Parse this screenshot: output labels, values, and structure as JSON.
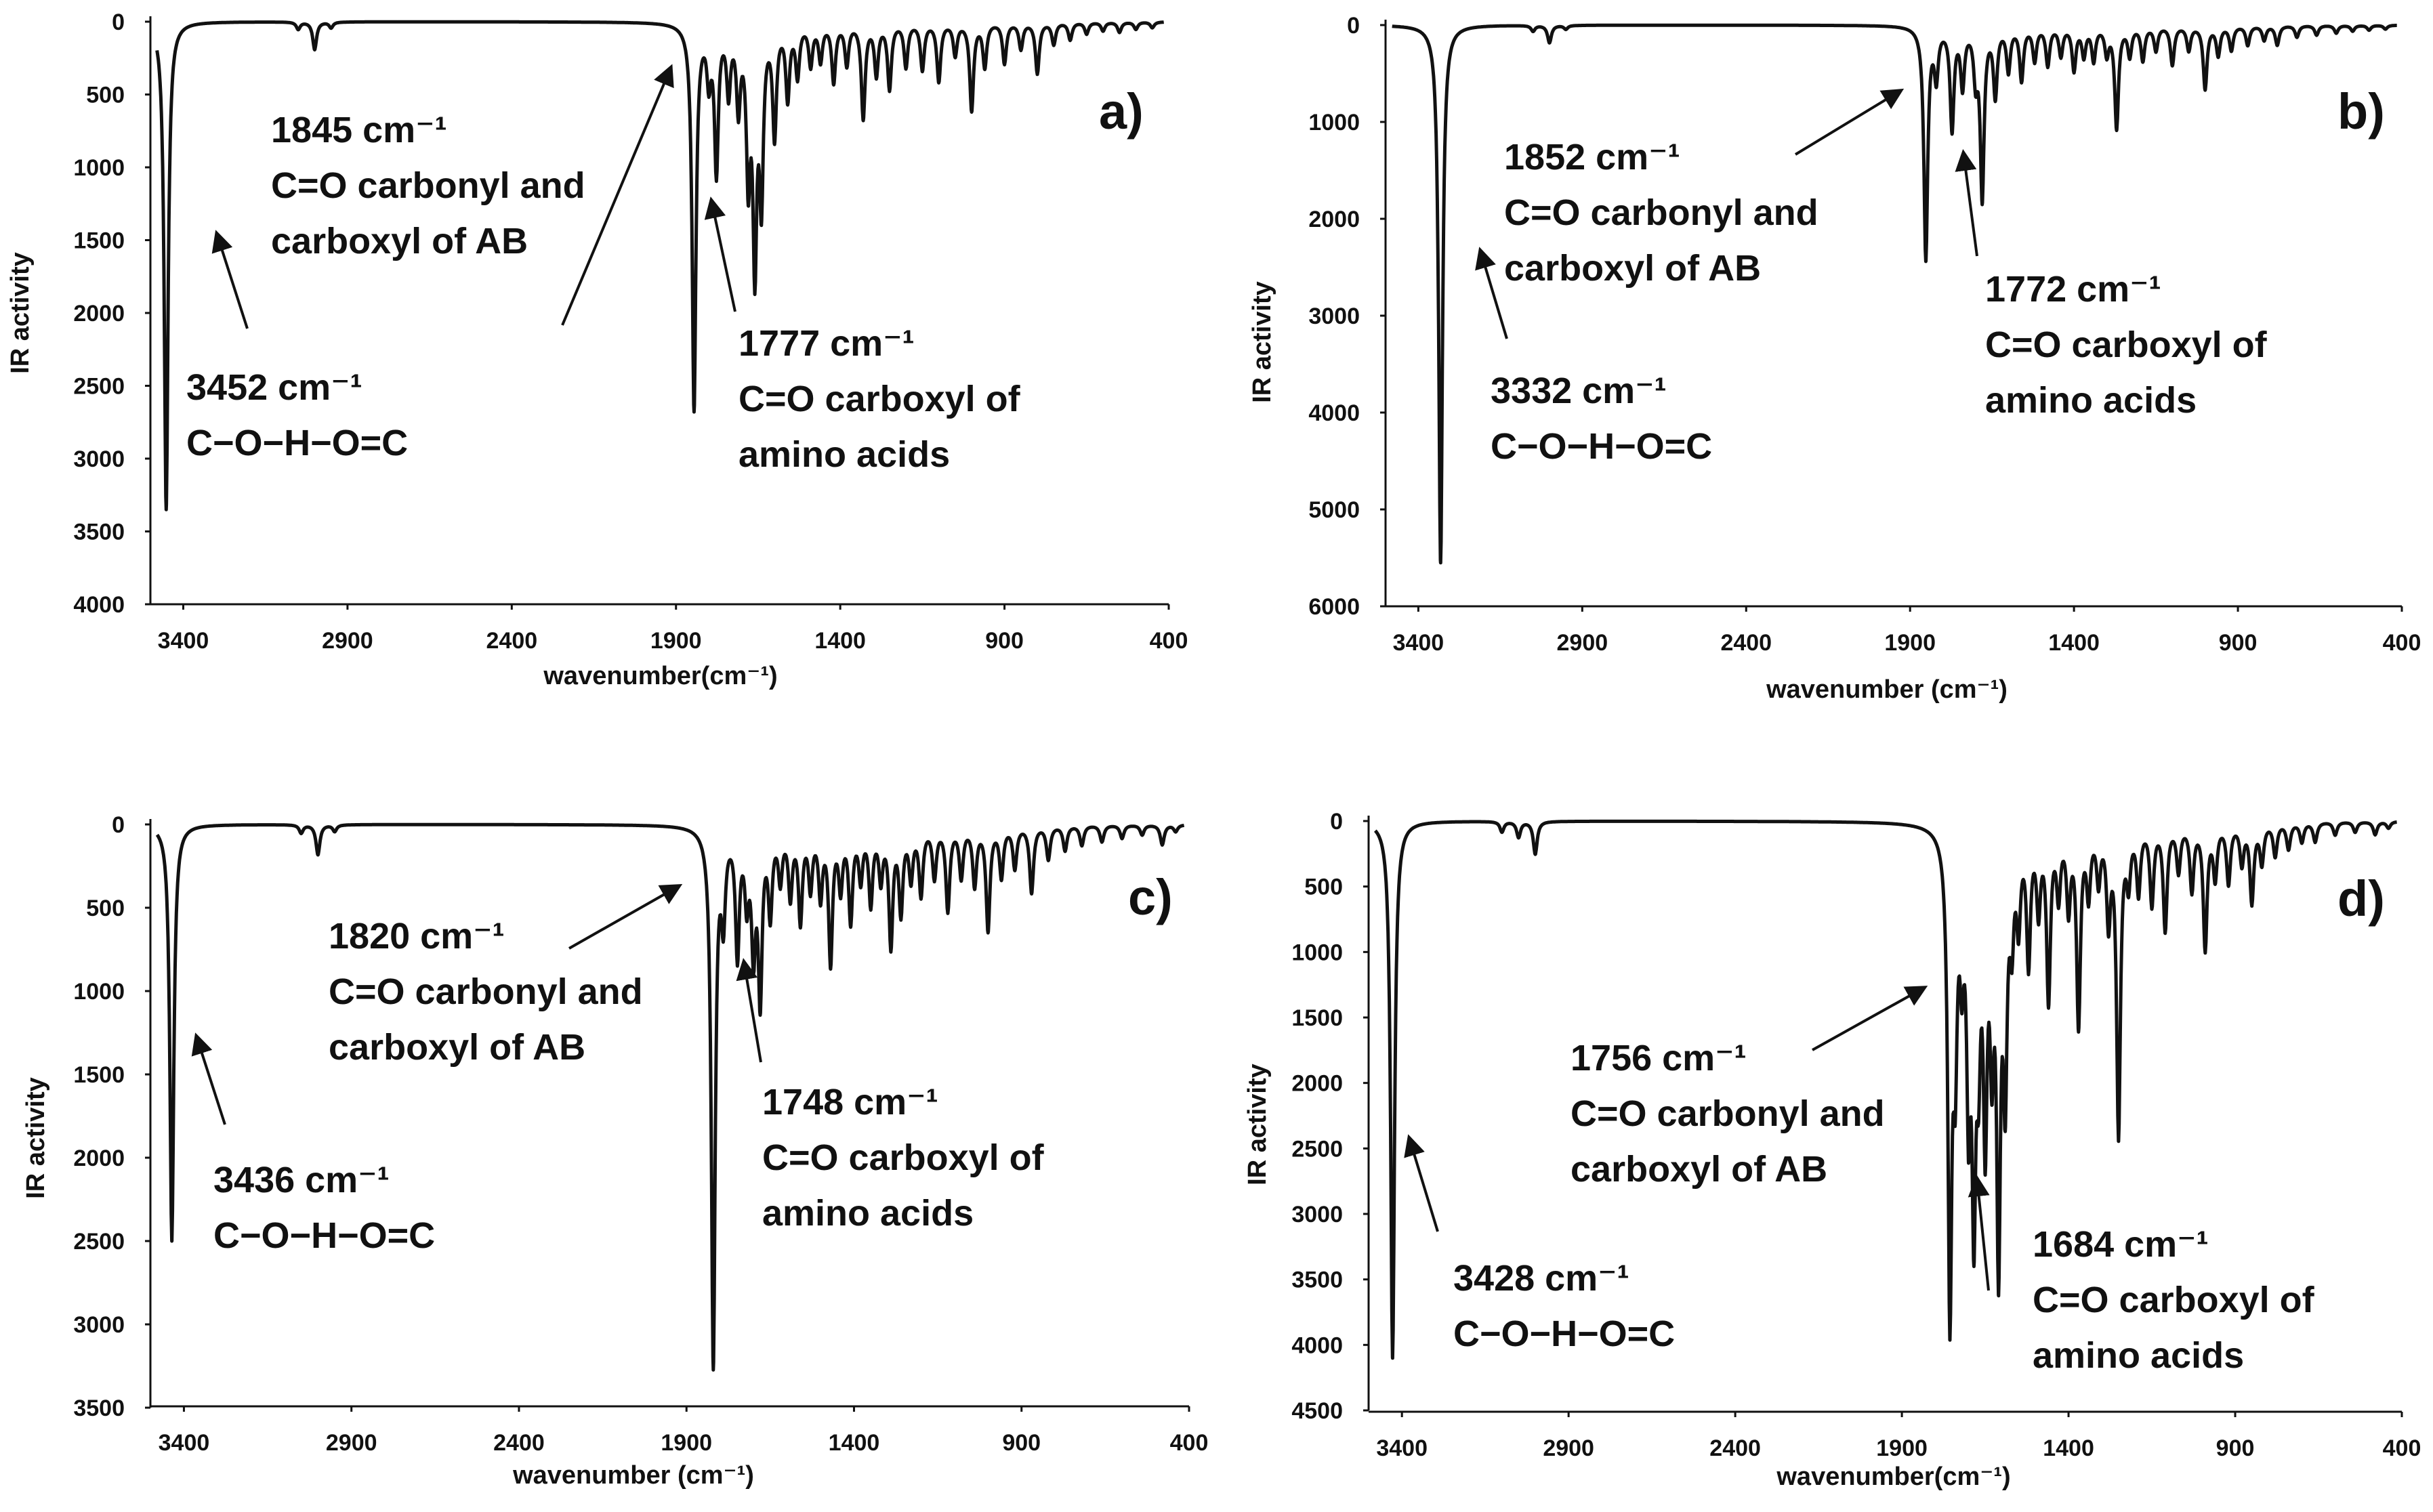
{
  "colors": {
    "line": "#111111",
    "background": "#ffffff"
  },
  "chart_data": [
    {
      "type": "line",
      "panel_label": "a)",
      "xlabel": "wavenumber(cm⁻¹)",
      "ylabel": "IR activity",
      "xlim": [
        3500,
        400
      ],
      "ylim": [
        0,
        4000
      ],
      "y_inverted": true,
      "xticks": [
        3400,
        2900,
        2400,
        1900,
        1400,
        900,
        400
      ],
      "yticks": [
        0,
        500,
        1000,
        1500,
        2000,
        2500,
        3000,
        3500,
        4000
      ],
      "peaks": [
        {
          "x": 3452,
          "y": 3350
        },
        {
          "x": 3050,
          "y": 50
        },
        {
          "x": 3000,
          "y": 190
        },
        {
          "x": 2950,
          "y": 40
        },
        {
          "x": 1845,
          "y": 2650
        },
        {
          "x": 1800,
          "y": 350
        },
        {
          "x": 1777,
          "y": 1000
        },
        {
          "x": 1740,
          "y": 450
        },
        {
          "x": 1710,
          "y": 550
        },
        {
          "x": 1680,
          "y": 1000
        },
        {
          "x": 1660,
          "y": 1600
        },
        {
          "x": 1640,
          "y": 1150
        },
        {
          "x": 1600,
          "y": 750
        },
        {
          "x": 1560,
          "y": 500
        },
        {
          "x": 1530,
          "y": 350
        },
        {
          "x": 1490,
          "y": 280
        },
        {
          "x": 1460,
          "y": 250
        },
        {
          "x": 1420,
          "y": 400
        },
        {
          "x": 1380,
          "y": 280
        },
        {
          "x": 1330,
          "y": 650
        },
        {
          "x": 1290,
          "y": 350
        },
        {
          "x": 1250,
          "y": 450
        },
        {
          "x": 1200,
          "y": 300
        },
        {
          "x": 1150,
          "y": 320
        },
        {
          "x": 1100,
          "y": 400
        },
        {
          "x": 1050,
          "y": 220
        },
        {
          "x": 1000,
          "y": 600
        },
        {
          "x": 960,
          "y": 300
        },
        {
          "x": 900,
          "y": 280
        },
        {
          "x": 850,
          "y": 180
        },
        {
          "x": 800,
          "y": 350
        },
        {
          "x": 750,
          "y": 150
        },
        {
          "x": 700,
          "y": 120
        },
        {
          "x": 650,
          "y": 80
        },
        {
          "x": 600,
          "y": 60
        },
        {
          "x": 550,
          "y": 70
        },
        {
          "x": 500,
          "y": 50
        },
        {
          "x": 450,
          "y": 40
        }
      ],
      "annotations": [
        {
          "lines": [
            "1845 cm⁻¹",
            "C=O carbonyl and",
            "carboxyl of AB"
          ]
        },
        {
          "lines": [
            "1777 cm⁻¹",
            "C=O carboxyl of",
            "amino acids"
          ]
        },
        {
          "lines": [
            "3452 cm⁻¹",
            "C−O−H−O=C"
          ]
        }
      ]
    },
    {
      "type": "line",
      "panel_label": "b)",
      "xlabel": "wavenumber (cm⁻¹)",
      "ylabel": "IR activity",
      "xlim": [
        3500,
        400
      ],
      "ylim": [
        0,
        6000
      ],
      "y_inverted": true,
      "xticks": [
        3400,
        2900,
        2400,
        1900,
        1400,
        900,
        400
      ],
      "yticks": [
        0,
        1000,
        2000,
        3000,
        4000,
        5000,
        6000
      ],
      "peaks": [
        {
          "x": 3332,
          "y": 5550
        },
        {
          "x": 3050,
          "y": 60
        },
        {
          "x": 3000,
          "y": 180
        },
        {
          "x": 2950,
          "y": 40
        },
        {
          "x": 1852,
          "y": 2400
        },
        {
          "x": 1820,
          "y": 500
        },
        {
          "x": 1772,
          "y": 1050
        },
        {
          "x": 1740,
          "y": 600
        },
        {
          "x": 1700,
          "y": 500
        },
        {
          "x": 1680,
          "y": 1750
        },
        {
          "x": 1640,
          "y": 700
        },
        {
          "x": 1600,
          "y": 450
        },
        {
          "x": 1560,
          "y": 550
        },
        {
          "x": 1520,
          "y": 350
        },
        {
          "x": 1480,
          "y": 400
        },
        {
          "x": 1440,
          "y": 300
        },
        {
          "x": 1400,
          "y": 450
        },
        {
          "x": 1370,
          "y": 300
        },
        {
          "x": 1340,
          "y": 350
        },
        {
          "x": 1300,
          "y": 280
        },
        {
          "x": 1270,
          "y": 1050
        },
        {
          "x": 1230,
          "y": 300
        },
        {
          "x": 1190,
          "y": 350
        },
        {
          "x": 1150,
          "y": 250
        },
        {
          "x": 1100,
          "y": 400
        },
        {
          "x": 1050,
          "y": 250
        },
        {
          "x": 1000,
          "y": 650
        },
        {
          "x": 960,
          "y": 300
        },
        {
          "x": 920,
          "y": 250
        },
        {
          "x": 870,
          "y": 200
        },
        {
          "x": 820,
          "y": 150
        },
        {
          "x": 780,
          "y": 200
        },
        {
          "x": 720,
          "y": 120
        },
        {
          "x": 660,
          "y": 100
        },
        {
          "x": 600,
          "y": 80
        },
        {
          "x": 550,
          "y": 60
        },
        {
          "x": 500,
          "y": 50
        },
        {
          "x": 450,
          "y": 40
        }
      ],
      "annotations": [
        {
          "lines": [
            "1852 cm⁻¹",
            "C=O carbonyl and",
            "carboxyl of AB"
          ]
        },
        {
          "lines": [
            "1772 cm⁻¹",
            "C=O carboxyl of",
            "amino acids"
          ]
        },
        {
          "lines": [
            "3332 cm⁻¹",
            "C−O−H−O=C"
          ]
        }
      ]
    },
    {
      "type": "line",
      "panel_label": "c)",
      "xlabel": "wavenumber (cm⁻¹)",
      "ylabel": "IR activity",
      "xlim": [
        3500,
        400
      ],
      "ylim": [
        0,
        3500
      ],
      "y_inverted": true,
      "xticks": [
        3400,
        2900,
        2400,
        1900,
        1400,
        900,
        400
      ],
      "yticks": [
        0,
        500,
        1000,
        1500,
        2000,
        2500,
        3000,
        3500
      ],
      "peaks": [
        {
          "x": 3436,
          "y": 2500
        },
        {
          "x": 3050,
          "y": 50
        },
        {
          "x": 3000,
          "y": 180
        },
        {
          "x": 2950,
          "y": 40
        },
        {
          "x": 1820,
          "y": 3230
        },
        {
          "x": 1790,
          "y": 500
        },
        {
          "x": 1748,
          "y": 750
        },
        {
          "x": 1720,
          "y": 400
        },
        {
          "x": 1700,
          "y": 700
        },
        {
          "x": 1680,
          "y": 1000
        },
        {
          "x": 1650,
          "y": 500
        },
        {
          "x": 1620,
          "y": 300
        },
        {
          "x": 1590,
          "y": 400
        },
        {
          "x": 1560,
          "y": 550
        },
        {
          "x": 1530,
          "y": 350
        },
        {
          "x": 1500,
          "y": 400
        },
        {
          "x": 1470,
          "y": 800
        },
        {
          "x": 1440,
          "y": 350
        },
        {
          "x": 1410,
          "y": 550
        },
        {
          "x": 1380,
          "y": 300
        },
        {
          "x": 1350,
          "y": 450
        },
        {
          "x": 1320,
          "y": 300
        },
        {
          "x": 1290,
          "y": 700
        },
        {
          "x": 1260,
          "y": 500
        },
        {
          "x": 1230,
          "y": 300
        },
        {
          "x": 1200,
          "y": 400
        },
        {
          "x": 1160,
          "y": 300
        },
        {
          "x": 1120,
          "y": 500
        },
        {
          "x": 1080,
          "y": 300
        },
        {
          "x": 1040,
          "y": 350
        },
        {
          "x": 1000,
          "y": 620
        },
        {
          "x": 960,
          "y": 300
        },
        {
          "x": 920,
          "y": 250
        },
        {
          "x": 870,
          "y": 400
        },
        {
          "x": 820,
          "y": 200
        },
        {
          "x": 770,
          "y": 150
        },
        {
          "x": 720,
          "y": 120
        },
        {
          "x": 660,
          "y": 100
        },
        {
          "x": 600,
          "y": 80
        },
        {
          "x": 540,
          "y": 60
        },
        {
          "x": 480,
          "y": 120
        },
        {
          "x": 440,
          "y": 40
        }
      ],
      "annotations": [
        {
          "lines": [
            "1820 cm⁻¹",
            "C=O carbonyl and",
            "carboxyl of AB"
          ]
        },
        {
          "lines": [
            "1748 cm⁻¹",
            "C=O carboxyl of",
            "amino acids"
          ]
        },
        {
          "lines": [
            "3436 cm⁻¹",
            "C−O−H−O=C"
          ]
        }
      ]
    },
    {
      "type": "line",
      "panel_label": "d)",
      "xlabel": "wavenumber(cm⁻¹)",
      "ylabel": "IR activity",
      "xlim": [
        3500,
        400
      ],
      "ylim": [
        0,
        4500
      ],
      "y_inverted": true,
      "xticks": [
        3400,
        2900,
        2400,
        1900,
        1400,
        900,
        400
      ],
      "yticks": [
        0,
        500,
        1000,
        1500,
        2000,
        2500,
        3000,
        3500,
        4000,
        4500
      ],
      "peaks": [
        {
          "x": 3428,
          "y": 4100
        },
        {
          "x": 3100,
          "y": 80
        },
        {
          "x": 3050,
          "y": 120
        },
        {
          "x": 3000,
          "y": 250
        },
        {
          "x": 1756,
          "y": 3600
        },
        {
          "x": 1740,
          "y": 1500
        },
        {
          "x": 1720,
          "y": 800
        },
        {
          "x": 1700,
          "y": 1850
        },
        {
          "x": 1684,
          "y": 2600
        },
        {
          "x": 1670,
          "y": 1300
        },
        {
          "x": 1650,
          "y": 2100
        },
        {
          "x": 1630,
          "y": 1400
        },
        {
          "x": 1610,
          "y": 3100
        },
        {
          "x": 1590,
          "y": 1800
        },
        {
          "x": 1570,
          "y": 700
        },
        {
          "x": 1550,
          "y": 650
        },
        {
          "x": 1520,
          "y": 1000
        },
        {
          "x": 1490,
          "y": 600
        },
        {
          "x": 1460,
          "y": 1300
        },
        {
          "x": 1430,
          "y": 500
        },
        {
          "x": 1400,
          "y": 600
        },
        {
          "x": 1370,
          "y": 1500
        },
        {
          "x": 1340,
          "y": 500
        },
        {
          "x": 1310,
          "y": 400
        },
        {
          "x": 1280,
          "y": 700
        },
        {
          "x": 1250,
          "y": 2350
        },
        {
          "x": 1220,
          "y": 400
        },
        {
          "x": 1190,
          "y": 500
        },
        {
          "x": 1150,
          "y": 600
        },
        {
          "x": 1110,
          "y": 800
        },
        {
          "x": 1070,
          "y": 350
        },
        {
          "x": 1030,
          "y": 500
        },
        {
          "x": 990,
          "y": 950
        },
        {
          "x": 960,
          "y": 400
        },
        {
          "x": 920,
          "y": 450
        },
        {
          "x": 880,
          "y": 300
        },
        {
          "x": 850,
          "y": 600
        },
        {
          "x": 820,
          "y": 300
        },
        {
          "x": 780,
          "y": 250
        },
        {
          "x": 740,
          "y": 200
        },
        {
          "x": 700,
          "y": 150
        },
        {
          "x": 660,
          "y": 150
        },
        {
          "x": 600,
          "y": 100
        },
        {
          "x": 540,
          "y": 80
        },
        {
          "x": 480,
          "y": 100
        },
        {
          "x": 440,
          "y": 50
        }
      ],
      "annotations": [
        {
          "lines": [
            "1756 cm⁻¹",
            "C=O carbonyl and",
            "carboxyl of AB"
          ]
        },
        {
          "lines": [
            "1684 cm⁻¹",
            "C=O carboxyl of",
            "amino acids"
          ]
        },
        {
          "lines": [
            "3428 cm⁻¹",
            "C−O−H−O=C"
          ]
        }
      ]
    }
  ]
}
